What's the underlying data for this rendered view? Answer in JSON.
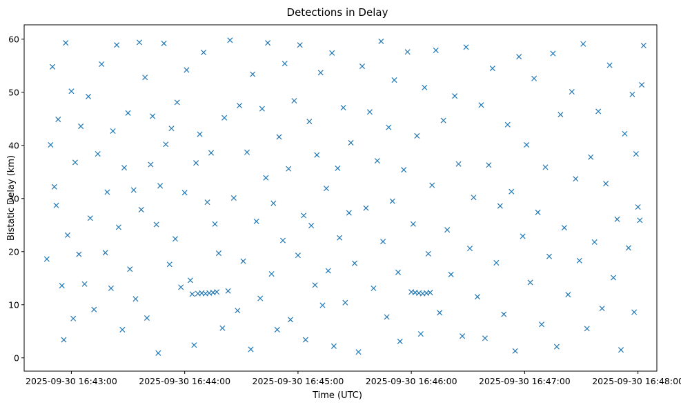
{
  "chart_data": {
    "type": "scatter",
    "title": "Detections in Delay",
    "xlabel": "Time (UTC)",
    "ylabel": "Bistatic Delay (km)",
    "marker": "x",
    "color": "#1f77b4",
    "grid": false,
    "legend": "none",
    "xlim": [
      "2025-09-30 16:42:35",
      "2025-09-30 16:48:10"
    ],
    "ylim": [
      -2.5,
      62.7
    ],
    "x_ticks": [
      "2025-09-30 16:43:00",
      "2025-09-30 16:44:00",
      "2025-09-30 16:45:00",
      "2025-09-30 16:46:00",
      "2025-09-30 16:47:00",
      "2025-09-30 16:48:00"
    ],
    "y_ticks": [
      "0",
      "10",
      "20",
      "30",
      "40",
      "50",
      "60"
    ],
    "x_tick_values": [
      "2025-09-30 16:43:00",
      "2025-09-30 16:44:00",
      "2025-09-30 16:45:00",
      "2025-09-30 16:46:00",
      "2025-09-30 16:47:00",
      "2025-09-30 16:48:00"
    ],
    "y_tick_values": [
      0,
      10,
      20,
      30,
      40,
      50,
      60
    ],
    "series": [
      {
        "values": [
          [
            "2025-09-30 16:42:47",
            18.6
          ],
          [
            "2025-09-30 16:42:49",
            40.1
          ],
          [
            "2025-09-30 16:42:50",
            54.8
          ],
          [
            "2025-09-30 16:42:51",
            32.2
          ],
          [
            "2025-09-30 16:42:52",
            28.7
          ],
          [
            "2025-09-30 16:42:53",
            44.9
          ],
          [
            "2025-09-30 16:42:55",
            13.6
          ],
          [
            "2025-09-30 16:42:56",
            3.4
          ],
          [
            "2025-09-30 16:42:57",
            59.3
          ],
          [
            "2025-09-30 16:42:58",
            23.1
          ],
          [
            "2025-09-30 16:43:00",
            50.2
          ],
          [
            "2025-09-30 16:43:01",
            7.4
          ],
          [
            "2025-09-30 16:43:02",
            36.8
          ],
          [
            "2025-09-30 16:43:04",
            19.5
          ],
          [
            "2025-09-30 16:43:05",
            43.6
          ],
          [
            "2025-09-30 16:43:07",
            13.9
          ],
          [
            "2025-09-30 16:43:09",
            49.2
          ],
          [
            "2025-09-30 16:43:10",
            26.3
          ],
          [
            "2025-09-30 16:43:12",
            9.1
          ],
          [
            "2025-09-30 16:43:14",
            38.4
          ],
          [
            "2025-09-30 16:43:16",
            55.3
          ],
          [
            "2025-09-30 16:43:18",
            19.8
          ],
          [
            "2025-09-30 16:43:19",
            31.2
          ],
          [
            "2025-09-30 16:43:21",
            13.1
          ],
          [
            "2025-09-30 16:43:22",
            42.7
          ],
          [
            "2025-09-30 16:43:24",
            58.9
          ],
          [
            "2025-09-30 16:43:25",
            24.6
          ],
          [
            "2025-09-30 16:43:27",
            5.3
          ],
          [
            "2025-09-30 16:43:28",
            35.8
          ],
          [
            "2025-09-30 16:43:30",
            46.1
          ],
          [
            "2025-09-30 16:43:31",
            16.7
          ],
          [
            "2025-09-30 16:43:33",
            31.6
          ],
          [
            "2025-09-30 16:43:34",
            11.1
          ],
          [
            "2025-09-30 16:43:36",
            59.4
          ],
          [
            "2025-09-30 16:43:37",
            27.9
          ],
          [
            "2025-09-30 16:43:39",
            52.8
          ],
          [
            "2025-09-30 16:43:40",
            7.5
          ],
          [
            "2025-09-30 16:43:42",
            36.4
          ],
          [
            "2025-09-30 16:43:43",
            45.5
          ],
          [
            "2025-09-30 16:43:45",
            25.1
          ],
          [
            "2025-09-30 16:43:46",
            0.9
          ],
          [
            "2025-09-30 16:43:47",
            32.4
          ],
          [
            "2025-09-30 16:43:49",
            59.2
          ],
          [
            "2025-09-30 16:43:50",
            40.2
          ],
          [
            "2025-09-30 16:43:52",
            17.6
          ],
          [
            "2025-09-30 16:43:53",
            43.2
          ],
          [
            "2025-09-30 16:43:55",
            22.4
          ],
          [
            "2025-09-30 16:43:56",
            48.1
          ],
          [
            "2025-09-30 16:43:58",
            13.3
          ],
          [
            "2025-09-30 16:44:00",
            31.1
          ],
          [
            "2025-09-30 16:44:01",
            54.2
          ],
          [
            "2025-09-30 16:44:03",
            14.6
          ],
          [
            "2025-09-30 16:44:04",
            12.0
          ],
          [
            "2025-09-30 16:44:05",
            2.4
          ],
          [
            "2025-09-30 16:44:06",
            36.7
          ],
          [
            "2025-09-30 16:44:07",
            12.1
          ],
          [
            "2025-09-30 16:44:08",
            42.1
          ],
          [
            "2025-09-30 16:44:09",
            12.2
          ],
          [
            "2025-09-30 16:44:10",
            57.5
          ],
          [
            "2025-09-30 16:44:11",
            12.1
          ],
          [
            "2025-09-30 16:44:12",
            29.3
          ],
          [
            "2025-09-30 16:44:13",
            12.2
          ],
          [
            "2025-09-30 16:44:14",
            38.6
          ],
          [
            "2025-09-30 16:44:15",
            12.3
          ],
          [
            "2025-09-30 16:44:16",
            25.2
          ],
          [
            "2025-09-30 16:44:17",
            12.4
          ],
          [
            "2025-09-30 16:44:18",
            19.7
          ],
          [
            "2025-09-30 16:44:20",
            5.6
          ],
          [
            "2025-09-30 16:44:21",
            45.2
          ],
          [
            "2025-09-30 16:44:23",
            12.6
          ],
          [
            "2025-09-30 16:44:24",
            59.8
          ],
          [
            "2025-09-30 16:44:26",
            30.1
          ],
          [
            "2025-09-30 16:44:28",
            8.9
          ],
          [
            "2025-09-30 16:44:29",
            47.5
          ],
          [
            "2025-09-30 16:44:31",
            18.2
          ],
          [
            "2025-09-30 16:44:33",
            38.7
          ],
          [
            "2025-09-30 16:44:35",
            1.6
          ],
          [
            "2025-09-30 16:44:36",
            53.4
          ],
          [
            "2025-09-30 16:44:38",
            25.7
          ],
          [
            "2025-09-30 16:44:40",
            11.2
          ],
          [
            "2025-09-30 16:44:41",
            46.9
          ],
          [
            "2025-09-30 16:44:43",
            33.9
          ],
          [
            "2025-09-30 16:44:44",
            59.3
          ],
          [
            "2025-09-30 16:44:46",
            15.8
          ],
          [
            "2025-09-30 16:44:47",
            29.1
          ],
          [
            "2025-09-30 16:44:49",
            5.3
          ],
          [
            "2025-09-30 16:44:50",
            41.6
          ],
          [
            "2025-09-30 16:44:52",
            22.1
          ],
          [
            "2025-09-30 16:44:53",
            55.4
          ],
          [
            "2025-09-30 16:44:55",
            35.6
          ],
          [
            "2025-09-30 16:44:56",
            7.2
          ],
          [
            "2025-09-30 16:44:58",
            48.4
          ],
          [
            "2025-09-30 16:45:00",
            19.3
          ],
          [
            "2025-09-30 16:45:01",
            58.9
          ],
          [
            "2025-09-30 16:45:03",
            26.8
          ],
          [
            "2025-09-30 16:45:04",
            3.4
          ],
          [
            "2025-09-30 16:45:06",
            44.5
          ],
          [
            "2025-09-30 16:45:07",
            24.9
          ],
          [
            "2025-09-30 16:45:09",
            13.7
          ],
          [
            "2025-09-30 16:45:10",
            38.2
          ],
          [
            "2025-09-30 16:45:12",
            53.7
          ],
          [
            "2025-09-30 16:45:13",
            9.9
          ],
          [
            "2025-09-30 16:45:15",
            31.9
          ],
          [
            "2025-09-30 16:45:16",
            16.4
          ],
          [
            "2025-09-30 16:45:18",
            57.4
          ],
          [
            "2025-09-30 16:45:19",
            2.2
          ],
          [
            "2025-09-30 16:45:21",
            35.7
          ],
          [
            "2025-09-30 16:45:22",
            22.6
          ],
          [
            "2025-09-30 16:45:24",
            47.1
          ],
          [
            "2025-09-30 16:45:25",
            10.4
          ],
          [
            "2025-09-30 16:45:27",
            27.3
          ],
          [
            "2025-09-30 16:45:28",
            40.5
          ],
          [
            "2025-09-30 16:45:30",
            17.8
          ],
          [
            "2025-09-30 16:45:32",
            1.1
          ],
          [
            "2025-09-30 16:45:34",
            54.9
          ],
          [
            "2025-09-30 16:45:36",
            28.2
          ],
          [
            "2025-09-30 16:45:38",
            46.3
          ],
          [
            "2025-09-30 16:45:40",
            13.1
          ],
          [
            "2025-09-30 16:45:42",
            37.1
          ],
          [
            "2025-09-30 16:45:44",
            59.6
          ],
          [
            "2025-09-30 16:45:45",
            21.9
          ],
          [
            "2025-09-30 16:45:47",
            7.7
          ],
          [
            "2025-09-30 16:45:48",
            43.4
          ],
          [
            "2025-09-30 16:45:50",
            29.5
          ],
          [
            "2025-09-30 16:45:51",
            52.3
          ],
          [
            "2025-09-30 16:45:53",
            16.1
          ],
          [
            "2025-09-30 16:45:54",
            3.1
          ],
          [
            "2025-09-30 16:45:56",
            35.4
          ],
          [
            "2025-09-30 16:45:58",
            57.6
          ],
          [
            "2025-09-30 16:46:00",
            12.4
          ],
          [
            "2025-09-30 16:46:01",
            25.2
          ],
          [
            "2025-09-30 16:46:02",
            12.3
          ],
          [
            "2025-09-30 16:46:03",
            41.8
          ],
          [
            "2025-09-30 16:46:04",
            12.2
          ],
          [
            "2025-09-30 16:46:05",
            4.5
          ],
          [
            "2025-09-30 16:46:06",
            12.1
          ],
          [
            "2025-09-30 16:46:07",
            50.9
          ],
          [
            "2025-09-30 16:46:08",
            12.2
          ],
          [
            "2025-09-30 16:46:09",
            19.6
          ],
          [
            "2025-09-30 16:46:10",
            12.3
          ],
          [
            "2025-09-30 16:46:11",
            32.5
          ],
          [
            "2025-09-30 16:46:13",
            57.9
          ],
          [
            "2025-09-30 16:46:15",
            8.5
          ],
          [
            "2025-09-30 16:46:17",
            44.7
          ],
          [
            "2025-09-30 16:46:19",
            24.1
          ],
          [
            "2025-09-30 16:46:21",
            15.7
          ],
          [
            "2025-09-30 16:46:23",
            49.3
          ],
          [
            "2025-09-30 16:46:25",
            36.5
          ],
          [
            "2025-09-30 16:46:27",
            4.1
          ],
          [
            "2025-09-30 16:46:29",
            58.5
          ],
          [
            "2025-09-30 16:46:31",
            20.6
          ],
          [
            "2025-09-30 16:46:33",
            30.2
          ],
          [
            "2025-09-30 16:46:35",
            11.5
          ],
          [
            "2025-09-30 16:46:37",
            47.6
          ],
          [
            "2025-09-30 16:46:39",
            3.7
          ],
          [
            "2025-09-30 16:46:41",
            36.3
          ],
          [
            "2025-09-30 16:46:43",
            54.5
          ],
          [
            "2025-09-30 16:46:45",
            17.9
          ],
          [
            "2025-09-30 16:46:47",
            28.6
          ],
          [
            "2025-09-30 16:46:49",
            8.2
          ],
          [
            "2025-09-30 16:46:51",
            43.9
          ],
          [
            "2025-09-30 16:46:53",
            31.3
          ],
          [
            "2025-09-30 16:46:55",
            1.3
          ],
          [
            "2025-09-30 16:46:57",
            56.7
          ],
          [
            "2025-09-30 16:46:59",
            22.9
          ],
          [
            "2025-09-30 16:47:01",
            40.1
          ],
          [
            "2025-09-30 16:47:03",
            14.2
          ],
          [
            "2025-09-30 16:47:05",
            52.6
          ],
          [
            "2025-09-30 16:47:07",
            27.4
          ],
          [
            "2025-09-30 16:47:09",
            6.3
          ],
          [
            "2025-09-30 16:47:11",
            35.9
          ],
          [
            "2025-09-30 16:47:13",
            19.1
          ],
          [
            "2025-09-30 16:47:15",
            57.3
          ],
          [
            "2025-09-30 16:47:17",
            2.1
          ],
          [
            "2025-09-30 16:47:19",
            45.8
          ],
          [
            "2025-09-30 16:47:21",
            24.5
          ],
          [
            "2025-09-30 16:47:23",
            11.9
          ],
          [
            "2025-09-30 16:47:25",
            50.1
          ],
          [
            "2025-09-30 16:47:27",
            33.7
          ],
          [
            "2025-09-30 16:47:29",
            18.3
          ],
          [
            "2025-09-30 16:47:31",
            59.1
          ],
          [
            "2025-09-30 16:47:33",
            5.5
          ],
          [
            "2025-09-30 16:47:35",
            37.8
          ],
          [
            "2025-09-30 16:47:37",
            21.8
          ],
          [
            "2025-09-30 16:47:39",
            46.4
          ],
          [
            "2025-09-30 16:47:41",
            9.3
          ],
          [
            "2025-09-30 16:47:43",
            32.8
          ],
          [
            "2025-09-30 16:47:45",
            55.1
          ],
          [
            "2025-09-30 16:47:47",
            15.1
          ],
          [
            "2025-09-30 16:47:49",
            26.1
          ],
          [
            "2025-09-30 16:47:51",
            1.5
          ],
          [
            "2025-09-30 16:47:53",
            42.2
          ],
          [
            "2025-09-30 16:47:55",
            20.7
          ],
          [
            "2025-09-30 16:47:57",
            49.6
          ],
          [
            "2025-09-30 16:47:58",
            8.6
          ],
          [
            "2025-09-30 16:47:59",
            38.4
          ],
          [
            "2025-09-30 16:48:00",
            28.4
          ],
          [
            "2025-09-30 16:48:01",
            25.9
          ],
          [
            "2025-09-30 16:48:02",
            51.4
          ],
          [
            "2025-09-30 16:48:03",
            58.8
          ]
        ]
      }
    ]
  }
}
